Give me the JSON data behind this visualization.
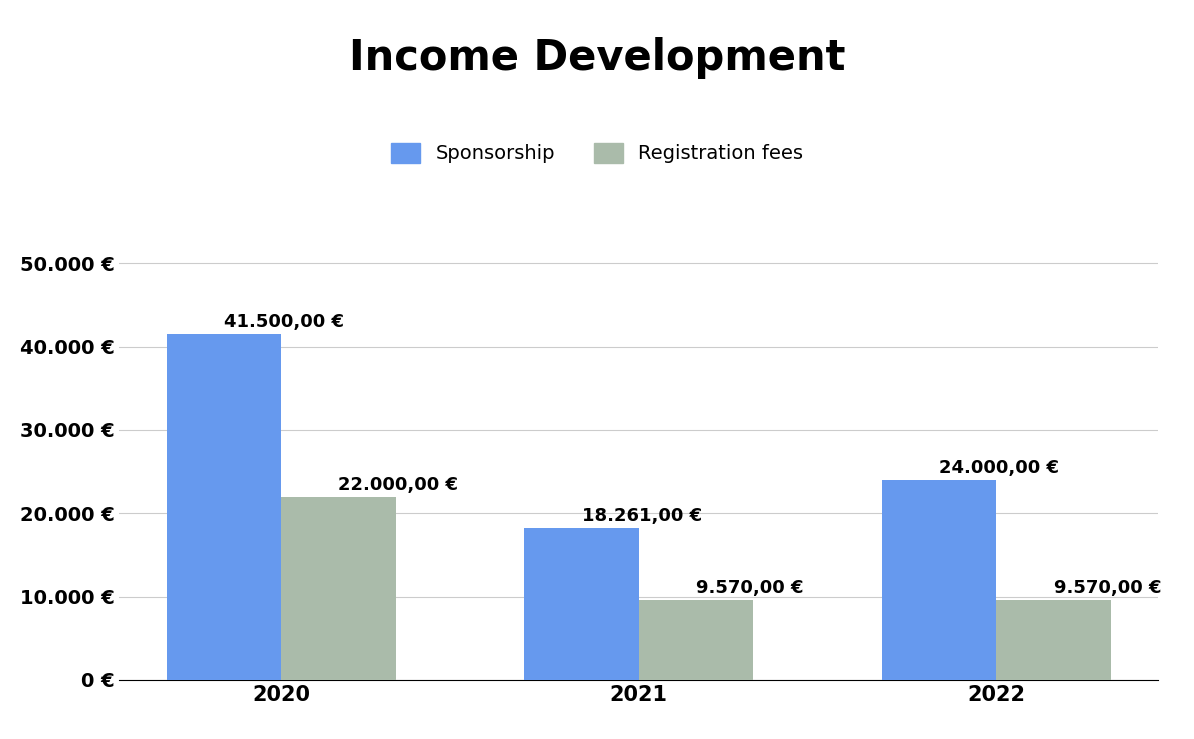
{
  "title": "Income Development",
  "title_fontsize": 30,
  "title_fontweight": "bold",
  "categories": [
    "2020",
    "2021",
    "2022"
  ],
  "sponsorship_values": [
    41500,
    18261,
    24000
  ],
  "registration_values": [
    22000,
    9570,
    9570
  ],
  "sponsorship_color": "#6699EE",
  "registration_color": "#AABBAA",
  "bar_width": 0.32,
  "ylim": [
    0,
    55000
  ],
  "yticks": [
    0,
    10000,
    20000,
    30000,
    40000,
    50000
  ],
  "ytick_labels": [
    "0 €",
    "10.000 €",
    "20.000 €",
    "30.000 €",
    "40.000 €",
    "50.000 €"
  ],
  "legend_labels": [
    "Sponsorship",
    "Registration fees"
  ],
  "value_labels_s": [
    "41.500,00 €",
    "18.261,00 €",
    "24.000,00 €"
  ],
  "value_labels_r": [
    "22.000,00 €",
    "9.570,00 €",
    "9.570,00 €"
  ],
  "background_color": "#FFFFFF",
  "grid_color": "#CCCCCC",
  "tick_fontsize": 14,
  "legend_fontsize": 14,
  "annotation_fontsize": 13,
  "annotation_fontweight": "bold",
  "xtick_fontsize": 15
}
